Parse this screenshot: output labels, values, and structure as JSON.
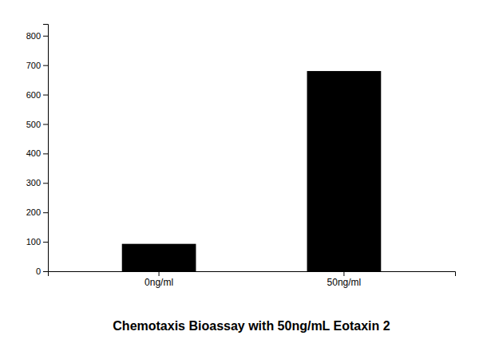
{
  "chart_data": {
    "type": "bar",
    "title": "Chemotaxis Bioassay with 50ng/mL Eotaxin 2",
    "categories": [
      "0ng/ml",
      "50ng/ml"
    ],
    "values": [
      93,
      680
    ],
    "color": "#000000",
    "ylim": [
      0,
      840
    ],
    "yticks": [
      0,
      100,
      200,
      300,
      400,
      500,
      600,
      700,
      800
    ],
    "grid": false
  }
}
